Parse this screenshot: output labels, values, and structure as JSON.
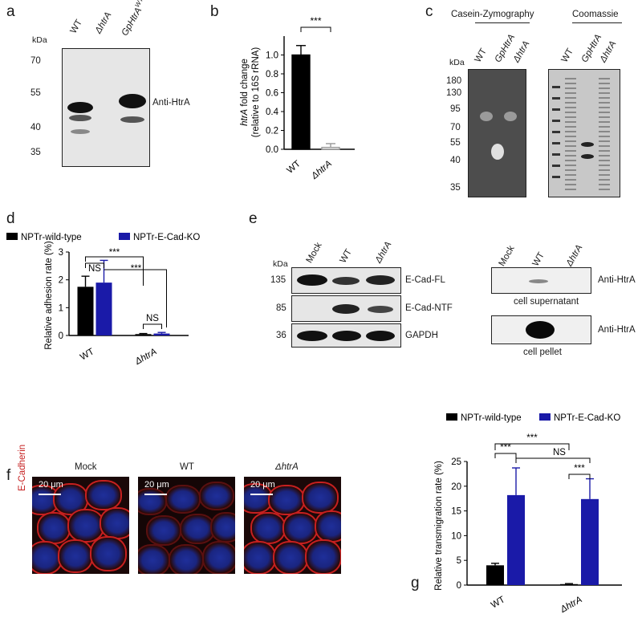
{
  "panel_a": {
    "label": "a",
    "kda": "kDa",
    "markers": [
      "70",
      "55",
      "40",
      "35"
    ],
    "lanes": [
      "WT",
      "ΔhtrA",
      "GpHtrA",
      "WT"
    ],
    "antibody": "Anti-HtrA"
  },
  "panel_b": {
    "label": "b",
    "significance": "***",
    "categories": [
      "WT",
      "ΔhtrA"
    ],
    "ylabel_italic": "htrA",
    "ylabel_rest": " fold change",
    "ylabel_2": "(relative to 16S rRNA)"
  },
  "panel_c": {
    "label": "c",
    "title_left": "Casein-Zymography",
    "title_right": "Coomassie",
    "kda": "kDa",
    "markers": [
      "180",
      "130",
      "95",
      "70",
      "55",
      "40",
      "35"
    ],
    "lanes": [
      "WT",
      "GpHtrA",
      "WT",
      "ΔhtrA"
    ]
  },
  "panel_d": {
    "label": "d",
    "legend": [
      "NPTr-wild-type",
      "NPTr-E-Cad-KO"
    ],
    "ylabel": "Relative adhesion rate (%)",
    "sig": [
      "***",
      "NS",
      "***",
      "NS"
    ],
    "categories": [
      "WT",
      "ΔhtrA"
    ]
  },
  "panel_e": {
    "label": "e",
    "kda": "kDa",
    "lanes": [
      "Mock",
      "WT",
      "ΔhtrA"
    ],
    "markers": [
      "135",
      "85",
      "36"
    ],
    "rows": [
      "E-Cad-FL",
      "E-Cad-NTF",
      "GAPDH"
    ],
    "right_lanes": [
      "Mock",
      "WT",
      "ΔhtrA"
    ],
    "right_antibody_1": "Anti-HtrA",
    "right_antibody_2": "Anti-HtrA",
    "caption_1": "cell supernatant",
    "caption_2": "cell pellet"
  },
  "panel_f": {
    "label": "f",
    "columns": [
      "Mock",
      "WT",
      "ΔhtrA"
    ],
    "scale": "20 μm",
    "row_label": "E-Cadherin"
  },
  "panel_g": {
    "label": "g",
    "legend": [
      "NPTr-wild-type",
      "NPTr-E-Cad-KO"
    ],
    "ylabel": "Relative transmigration rate (%)",
    "sig": [
      "***",
      "***",
      "NS",
      "***"
    ],
    "categories": [
      "WT",
      "ΔhtrA"
    ]
  },
  "colors": {
    "series_black": "#000000",
    "series_blue": "#1a1aa8",
    "stain_red": "#c62020",
    "nuclei_blue": "#1f2f9a"
  },
  "chart_data": [
    {
      "type": "bar",
      "title": "",
      "xlabel": "",
      "ylabel": "htrA fold change (relative to 16S rRNA)",
      "categories": [
        "WT",
        "ΔhtrA"
      ],
      "values": [
        1.0,
        0.02
      ],
      "errors": [
        0.1,
        0.04
      ],
      "ylim": [
        0,
        1.2
      ],
      "yticks": [
        0.0,
        0.2,
        0.4,
        0.6,
        0.8,
        1.0
      ],
      "grid": false
    },
    {
      "type": "bar",
      "title": "",
      "xlabel": "",
      "ylabel": "Relative adhesion rate (%)",
      "categories": [
        "WT",
        "ΔhtrA"
      ],
      "series": [
        {
          "name": "NPTr-wild-type",
          "values": [
            1.75,
            0.05
          ],
          "errors": [
            0.38,
            0.02
          ]
        },
        {
          "name": "NPTr-E-Cad-KO",
          "values": [
            1.9,
            0.07
          ],
          "errors": [
            0.8,
            0.04
          ]
        }
      ],
      "ylim": [
        0,
        3
      ],
      "yticks": [
        0,
        1,
        2,
        3
      ],
      "legend": "top",
      "grid": false
    },
    {
      "type": "bar",
      "title": "",
      "xlabel": "",
      "ylabel": "Relative transmigration rate (%)",
      "categories": [
        "WT",
        "ΔhtrA"
      ],
      "series": [
        {
          "name": "NPTr-wild-type",
          "values": [
            4.0,
            0.2
          ],
          "errors": [
            0.4,
            0.1
          ]
        },
        {
          "name": "NPTr-E-Cad-KO",
          "values": [
            18.2,
            17.4
          ],
          "errors": [
            5.5,
            4.1
          ]
        }
      ],
      "ylim": [
        0,
        25
      ],
      "yticks": [
        0,
        5,
        10,
        15,
        20,
        25
      ],
      "legend": "top",
      "grid": false
    }
  ]
}
